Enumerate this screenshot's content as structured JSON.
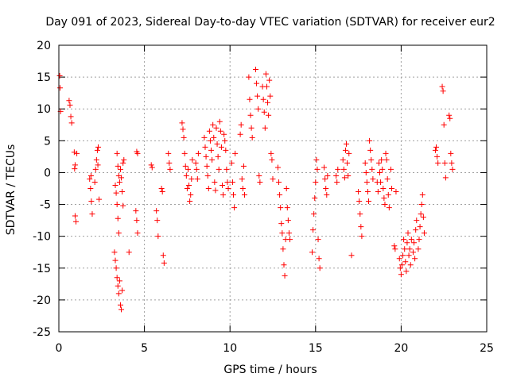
{
  "chart_data": {
    "type": "scatter",
    "title": "Day 091 of 2023, Sidereal Day-to-day VTEC variation (SDTVAR) for receiver eur2",
    "xlabel": "GPS time / hours",
    "ylabel": "SDTVAR / TECUs",
    "xlim": [
      0,
      25
    ],
    "ylim": [
      -25,
      20
    ],
    "xticks": [
      0,
      5,
      10,
      15,
      20,
      25
    ],
    "yticks": [
      -25,
      -20,
      -15,
      -10,
      -5,
      0,
      5,
      10,
      15,
      20
    ],
    "grid": true,
    "marker": "+",
    "color": "#ff0000",
    "series": [
      {
        "name": "SDTVAR",
        "points": [
          [
            0.05,
            15.2
          ],
          [
            0.07,
            13.3
          ],
          [
            0.1,
            9.6
          ],
          [
            0.6,
            11.3
          ],
          [
            0.65,
            10.6
          ],
          [
            0.7,
            8.8
          ],
          [
            0.75,
            7.8
          ],
          [
            0.9,
            3.2
          ],
          [
            0.95,
            1.2
          ],
          [
            0.92,
            0.6
          ],
          [
            0.95,
            -6.8
          ],
          [
            1.0,
            -7.7
          ],
          [
            1.05,
            3.0
          ],
          [
            1.8,
            -1.0
          ],
          [
            1.85,
            -2.5
          ],
          [
            1.9,
            -4.5
          ],
          [
            1.95,
            -6.5
          ],
          [
            1.88,
            -0.5
          ],
          [
            2.1,
            -1.5
          ],
          [
            2.15,
            0.5
          ],
          [
            2.2,
            2.0
          ],
          [
            2.25,
            3.5
          ],
          [
            2.3,
            4.0
          ],
          [
            2.35,
            -4.2
          ],
          [
            2.28,
            1.2
          ],
          [
            3.3,
            -2.0
          ],
          [
            3.35,
            -3.2
          ],
          [
            3.4,
            -5.0
          ],
          [
            3.45,
            -7.2
          ],
          [
            3.5,
            -9.5
          ],
          [
            3.25,
            -12.5
          ],
          [
            3.3,
            -13.8
          ],
          [
            3.35,
            -15.0
          ],
          [
            3.4,
            -16.5
          ],
          [
            3.45,
            -17.8
          ],
          [
            3.5,
            -19.0
          ],
          [
            3.55,
            -17.0
          ],
          [
            3.6,
            -20.8
          ],
          [
            3.65,
            -21.5
          ],
          [
            3.7,
            -18.5
          ],
          [
            3.4,
            3.0
          ],
          [
            3.45,
            1.0
          ],
          [
            3.5,
            -0.5
          ],
          [
            3.55,
            -1.5
          ],
          [
            3.6,
            0.5
          ],
          [
            3.65,
            -0.8
          ],
          [
            3.75,
            1.5
          ],
          [
            3.8,
            2.0
          ],
          [
            3.7,
            -3.0
          ],
          [
            3.75,
            -5.2
          ],
          [
            4.1,
            -12.5
          ],
          [
            4.5,
            -6.0
          ],
          [
            4.55,
            -7.5
          ],
          [
            4.6,
            -9.5
          ],
          [
            4.55,
            3.3
          ],
          [
            4.6,
            3.0
          ],
          [
            5.4,
            1.2
          ],
          [
            5.45,
            0.8
          ],
          [
            5.7,
            -6.0
          ],
          [
            5.75,
            -7.5
          ],
          [
            5.8,
            -10.0
          ],
          [
            6.0,
            -2.5
          ],
          [
            6.05,
            -3.0
          ],
          [
            6.1,
            -13.0
          ],
          [
            6.15,
            -14.2
          ],
          [
            6.4,
            3.0
          ],
          [
            6.45,
            1.5
          ],
          [
            6.5,
            0.5
          ],
          [
            7.2,
            7.8
          ],
          [
            7.25,
            6.8
          ],
          [
            7.3,
            5.5
          ],
          [
            7.35,
            3.0
          ],
          [
            7.4,
            1.0
          ],
          [
            7.45,
            -0.5
          ],
          [
            7.5,
            -2.5
          ],
          [
            7.55,
            0.5
          ],
          [
            7.6,
            -2.0
          ],
          [
            7.65,
            -4.5
          ],
          [
            7.7,
            -3.5
          ],
          [
            7.75,
            -1.0
          ],
          [
            7.8,
            2.0
          ],
          [
            8.0,
            1.5
          ],
          [
            8.05,
            0.5
          ],
          [
            8.1,
            -1.0
          ],
          [
            8.15,
            3.0
          ],
          [
            8.5,
            5.5
          ],
          [
            8.55,
            4.0
          ],
          [
            8.6,
            2.5
          ],
          [
            8.65,
            1.0
          ],
          [
            8.7,
            -0.5
          ],
          [
            8.75,
            -2.5
          ],
          [
            8.8,
            6.5
          ],
          [
            8.85,
            5.0
          ],
          [
            8.9,
            3.5
          ],
          [
            8.95,
            2.0
          ],
          [
            9.0,
            7.5
          ],
          [
            9.05,
            5.5
          ],
          [
            9.1,
            -1.5
          ],
          [
            9.15,
            -2.8
          ],
          [
            9.2,
            7.0
          ],
          [
            9.25,
            4.5
          ],
          [
            9.3,
            2.5
          ],
          [
            9.35,
            0.5
          ],
          [
            9.4,
            8.0
          ],
          [
            9.45,
            6.5
          ],
          [
            9.5,
            4.0
          ],
          [
            9.55,
            -2.0
          ],
          [
            9.6,
            -3.5
          ],
          [
            9.65,
            6.0
          ],
          [
            9.7,
            5.0
          ],
          [
            9.75,
            3.5
          ],
          [
            9.8,
            0.5
          ],
          [
            9.85,
            -1.5
          ],
          [
            9.9,
            -2.5
          ],
          [
            10.1,
            1.5
          ],
          [
            10.15,
            -1.5
          ],
          [
            10.2,
            -3.5
          ],
          [
            10.25,
            -5.5
          ],
          [
            10.3,
            3.0
          ],
          [
            10.6,
            6.0
          ],
          [
            10.65,
            7.5
          ],
          [
            10.7,
            -1.0
          ],
          [
            10.75,
            -2.5
          ],
          [
            10.8,
            1.0
          ],
          [
            10.85,
            -3.5
          ],
          [
            11.1,
            15.0
          ],
          [
            11.15,
            11.5
          ],
          [
            11.2,
            9.0
          ],
          [
            11.25,
            7.0
          ],
          [
            11.3,
            5.5
          ],
          [
            11.5,
            16.2
          ],
          [
            11.55,
            14.0
          ],
          [
            11.6,
            12.0
          ],
          [
            11.65,
            10.0
          ],
          [
            11.7,
            -0.5
          ],
          [
            11.75,
            -1.5
          ],
          [
            11.9,
            13.5
          ],
          [
            11.95,
            11.5
          ],
          [
            12.0,
            9.5
          ],
          [
            12.05,
            7.0
          ],
          [
            12.1,
            15.5
          ],
          [
            12.15,
            13.5
          ],
          [
            12.2,
            11.0
          ],
          [
            12.25,
            9.0
          ],
          [
            12.3,
            14.5
          ],
          [
            12.35,
            12.0
          ],
          [
            12.4,
            3.0
          ],
          [
            12.45,
            2.0
          ],
          [
            12.5,
            -1.0
          ],
          [
            12.8,
            0.8
          ],
          [
            12.85,
            -1.5
          ],
          [
            12.9,
            -3.5
          ],
          [
            12.95,
            -5.5
          ],
          [
            13.0,
            -8.0
          ],
          [
            13.05,
            -9.5
          ],
          [
            13.1,
            -12.0
          ],
          [
            13.15,
            -14.5
          ],
          [
            13.2,
            -16.2
          ],
          [
            13.25,
            -10.5
          ],
          [
            13.3,
            -2.5
          ],
          [
            13.35,
            -5.5
          ],
          [
            13.4,
            -7.5
          ],
          [
            13.45,
            -9.5
          ],
          [
            13.5,
            -10.5
          ],
          [
            14.8,
            -12.5
          ],
          [
            14.85,
            -9.0
          ],
          [
            14.9,
            -6.5
          ],
          [
            14.95,
            -4.0
          ],
          [
            15.0,
            -1.5
          ],
          [
            15.05,
            2.0
          ],
          [
            15.1,
            0.5
          ],
          [
            15.15,
            -10.5
          ],
          [
            15.2,
            -13.5
          ],
          [
            15.25,
            -15.0
          ],
          [
            15.5,
            0.8
          ],
          [
            15.55,
            -1.0
          ],
          [
            15.6,
            -2.5
          ],
          [
            15.65,
            -3.5
          ],
          [
            15.7,
            -0.5
          ],
          [
            16.2,
            -0.5
          ],
          [
            16.25,
            -1.5
          ],
          [
            16.3,
            0.5
          ],
          [
            16.6,
            2.0
          ],
          [
            16.65,
            0.5
          ],
          [
            16.7,
            -0.8
          ],
          [
            16.75,
            3.5
          ],
          [
            16.8,
            4.5
          ],
          [
            16.85,
            1.5
          ],
          [
            16.9,
            -0.5
          ],
          [
            16.95,
            3.0
          ],
          [
            17.1,
            -13.0
          ],
          [
            17.5,
            -3.0
          ],
          [
            17.55,
            -4.5
          ],
          [
            17.6,
            -6.5
          ],
          [
            17.65,
            -8.5
          ],
          [
            17.7,
            -10.0
          ],
          [
            17.9,
            1.5
          ],
          [
            17.95,
            0.0
          ],
          [
            18.0,
            -1.5
          ],
          [
            18.05,
            -3.0
          ],
          [
            18.1,
            -4.5
          ],
          [
            18.15,
            5.0
          ],
          [
            18.2,
            3.5
          ],
          [
            18.25,
            2.0
          ],
          [
            18.3,
            0.5
          ],
          [
            18.35,
            -1.0
          ],
          [
            18.6,
            -1.5
          ],
          [
            18.65,
            -3.0
          ],
          [
            18.7,
            1.5
          ],
          [
            18.75,
            0.0
          ],
          [
            18.8,
            -1.5
          ],
          [
            18.85,
            2.0
          ],
          [
            18.9,
            0.5
          ],
          [
            18.95,
            -2.5
          ],
          [
            19.0,
            -4.0
          ],
          [
            19.05,
            -5.0
          ],
          [
            19.1,
            3.0
          ],
          [
            19.15,
            2.0
          ],
          [
            19.2,
            -1.0
          ],
          [
            19.25,
            -3.5
          ],
          [
            19.3,
            -5.5
          ],
          [
            19.4,
            0.5
          ],
          [
            19.45,
            -2.5
          ],
          [
            19.6,
            -11.5
          ],
          [
            19.65,
            -12.0
          ],
          [
            19.7,
            -3.0
          ],
          [
            19.9,
            -13.5
          ],
          [
            19.95,
            -15.0
          ],
          [
            20.0,
            -16.0
          ],
          [
            20.05,
            -14.5
          ],
          [
            20.1,
            -13.0
          ],
          [
            20.15,
            -10.5
          ],
          [
            20.2,
            -12.0
          ],
          [
            20.25,
            -14.0
          ],
          [
            20.3,
            -15.5
          ],
          [
            20.35,
            -11.0
          ],
          [
            20.4,
            -9.5
          ],
          [
            20.45,
            -13.0
          ],
          [
            20.5,
            -12.0
          ],
          [
            20.55,
            -14.5
          ],
          [
            20.6,
            -10.5
          ],
          [
            20.7,
            -12.5
          ],
          [
            20.75,
            -11.0
          ],
          [
            20.8,
            -13.5
          ],
          [
            20.85,
            -9.0
          ],
          [
            20.9,
            -7.5
          ],
          [
            21.0,
            -12.0
          ],
          [
            21.05,
            -10.5
          ],
          [
            21.1,
            -8.5
          ],
          [
            21.15,
            -6.5
          ],
          [
            21.2,
            -5.0
          ],
          [
            21.25,
            -3.5
          ],
          [
            21.3,
            -7.0
          ],
          [
            21.35,
            -9.5
          ],
          [
            22.0,
            3.5
          ],
          [
            22.05,
            4.0
          ],
          [
            22.1,
            2.5
          ],
          [
            22.15,
            1.5
          ],
          [
            22.4,
            13.5
          ],
          [
            22.45,
            12.8
          ],
          [
            22.5,
            7.5
          ],
          [
            22.55,
            1.5
          ],
          [
            22.6,
            -0.8
          ],
          [
            22.8,
            9.0
          ],
          [
            22.85,
            8.5
          ],
          [
            22.9,
            3.0
          ],
          [
            22.95,
            1.5
          ],
          [
            23.0,
            0.5
          ]
        ]
      }
    ]
  }
}
